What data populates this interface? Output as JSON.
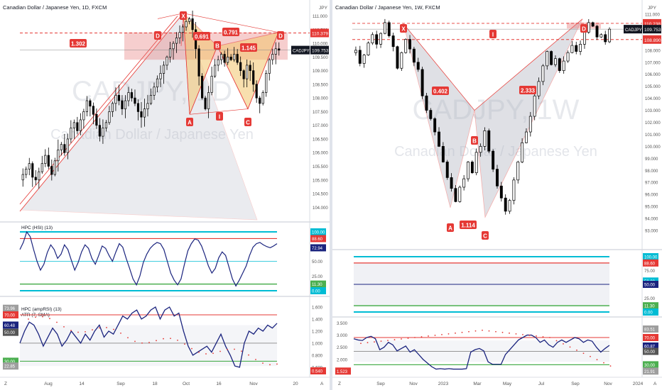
{
  "left": {
    "title": "Canadian Dollar / Japanese Yen, 1D, FXCM",
    "currency": "JPY",
    "watermark_big": "CADJPY, 1D",
    "watermark_small": "Canadian Dollar / Japanese Yen",
    "price_ticks": [
      "111.000",
      "110.500",
      "110.000",
      "109.500",
      "109.000",
      "108.500",
      "108.000",
      "107.500",
      "107.000",
      "106.500",
      "106.000",
      "105.500",
      "105.000",
      "104.500",
      "104.000"
    ],
    "last_label": "CADJPY",
    "last_price": "109.753",
    "line_price": "110.379",
    "pattern_points": [
      "X",
      "A",
      "B",
      "C",
      "D",
      "D",
      "I"
    ],
    "ratios": [
      "1.302",
      "0.691",
      "0.791",
      "1.145"
    ],
    "ind1_title": "HPC (HSI) (13)",
    "ind1_ticks": [
      "100.00",
      "88.60",
      "72.94",
      "50.00",
      "25.00",
      "11.30",
      "0.00"
    ],
    "ind2_title": "HPC (ampRSI) (13)",
    "ind2_title2": "ATR (7, SMA)",
    "ind2_left_ticks": [
      "73.96",
      "70.00",
      "60.48",
      "50.00",
      "30.00",
      "22.85"
    ],
    "ind2_right_ticks": [
      "1.600",
      "1.400",
      "1.200",
      "1.000",
      "0.800",
      "0.600",
      "0.540"
    ],
    "x_ticks": [
      "Aug",
      "14",
      "Sep",
      "18",
      "Oct",
      "16",
      "Nov",
      "20"
    ],
    "corner_left": "Z",
    "corner_right": "A"
  },
  "right": {
    "title": "Canadian Dollar / Japanese Yen, 1W, FXCM",
    "currency": "JPY",
    "watermark_big": "CADJPY, 1W",
    "watermark_small": "Canadian Dollar / Japanese Yen",
    "price_ticks": [
      "111.000",
      "110.000",
      "109.000",
      "108.000",
      "107.000",
      "106.000",
      "105.000",
      "104.000",
      "103.000",
      "102.000",
      "101.000",
      "100.000",
      "99.000",
      "98.000",
      "97.000",
      "96.000",
      "95.000",
      "94.000",
      "93.000"
    ],
    "line_top_price": "110.238",
    "line_bottom_price": "108.890",
    "last_label": "CADJPY",
    "last_price": "109.753",
    "pattern_points": [
      "X",
      "A",
      "B",
      "C",
      "D",
      "I"
    ],
    "ratios": [
      "0.402",
      "1.114",
      "2.333"
    ],
    "ind1_ticks": [
      "100.00",
      "88.60",
      "75.00",
      "50.00",
      "50.00",
      "25.00",
      "11.30",
      "0.00"
    ],
    "ind2_left_ticks": [
      "3.500",
      "3.000",
      "2.500",
      "2.000",
      "1.523"
    ],
    "ind2_right_ticks": [
      "83.51",
      "70.00",
      "60.87",
      "50.00",
      "30.00",
      "21.91"
    ],
    "x_ticks": [
      "Sep",
      "Nov",
      "2023",
      "Mar",
      "May",
      "Jul",
      "Sep",
      "Nov",
      "2024"
    ],
    "corner_left": "Z",
    "corner_right": "A"
  },
  "colors": {
    "up": "#ffffff",
    "down": "#000000",
    "pattern_red": "#e53935",
    "harmonic_fill": "#f4c66d",
    "cyan": "#00bcd4",
    "green": "#4caf50",
    "navy": "#1a237e",
    "gray_fill": "#b0b4c0",
    "pink_fill": "#e57373"
  },
  "chart_data": [
    {
      "type": "candlestick",
      "title": "Canadian Dollar / Japanese Yen, 1D, FXCM",
      "ylim": [
        103.8,
        111.3
      ],
      "x": [
        "Aug",
        "14",
        "Sep",
        "18",
        "Oct",
        "16",
        "Nov",
        "20"
      ],
      "closes": [
        105.2,
        105.4,
        105.6,
        105.1,
        105.0,
        105.3,
        105.6,
        105.9,
        105.5,
        105.2,
        105.7,
        106.1,
        106.3,
        106.0,
        106.5,
        106.9,
        107.1,
        106.8,
        107.2,
        107.5,
        107.9,
        107.7,
        107.4,
        107.0,
        106.6,
        106.9,
        107.1,
        107.5,
        107.8,
        108.1,
        107.9,
        107.6,
        107.9,
        108.2,
        108.0,
        107.8,
        107.5,
        107.3,
        107.6,
        107.8,
        108.1,
        108.4,
        108.7,
        108.9,
        109.2,
        109.5,
        109.8,
        110.0,
        110.2,
        110.4,
        110.6,
        110.8,
        110.9,
        110.5,
        109.8,
        108.8,
        108.0,
        107.6,
        108.2,
        108.8,
        109.2,
        109.4,
        109.6,
        109.3,
        109.5,
        109.4,
        109.6,
        109.3,
        109.0,
        108.7,
        109.2,
        109.0,
        108.5,
        108.0,
        107.8,
        108.2,
        108.9,
        109.4,
        109.6,
        109.8,
        109.75
      ]
    },
    {
      "type": "candlestick",
      "title": "Canadian Dollar / Japanese Yen, 1W, FXCM",
      "ylim": [
        92.5,
        111.5
      ],
      "x": [
        "Sep",
        "Nov",
        "2023",
        "Mar",
        "May",
        "Jul",
        "Sep",
        "Nov",
        "2024"
      ],
      "closes": [
        108.0,
        106.9,
        107.6,
        108.6,
        109.3,
        108.5,
        109.4,
        110.3,
        109.2,
        108.3,
        106.5,
        107.8,
        108.9,
        108.1,
        107.0,
        106.4,
        104.2,
        103.0,
        102.3,
        101.2,
        100.0,
        98.7,
        97.4,
        96.5,
        95.4,
        96.6,
        97.3,
        98.7,
        97.8,
        99.5,
        100.0,
        101.3,
        99.6,
        98.1,
        96.7,
        95.7,
        94.6,
        95.5,
        97.2,
        98.7,
        100.3,
        101.2,
        102.5,
        104.2,
        105.4,
        106.7,
        107.9,
        106.8,
        107.3,
        106.3,
        107.1,
        107.8,
        108.4,
        107.9,
        108.5,
        109.5,
        110.3,
        110.0,
        109.1,
        109.3,
        108.7,
        109.75
      ]
    }
  ]
}
